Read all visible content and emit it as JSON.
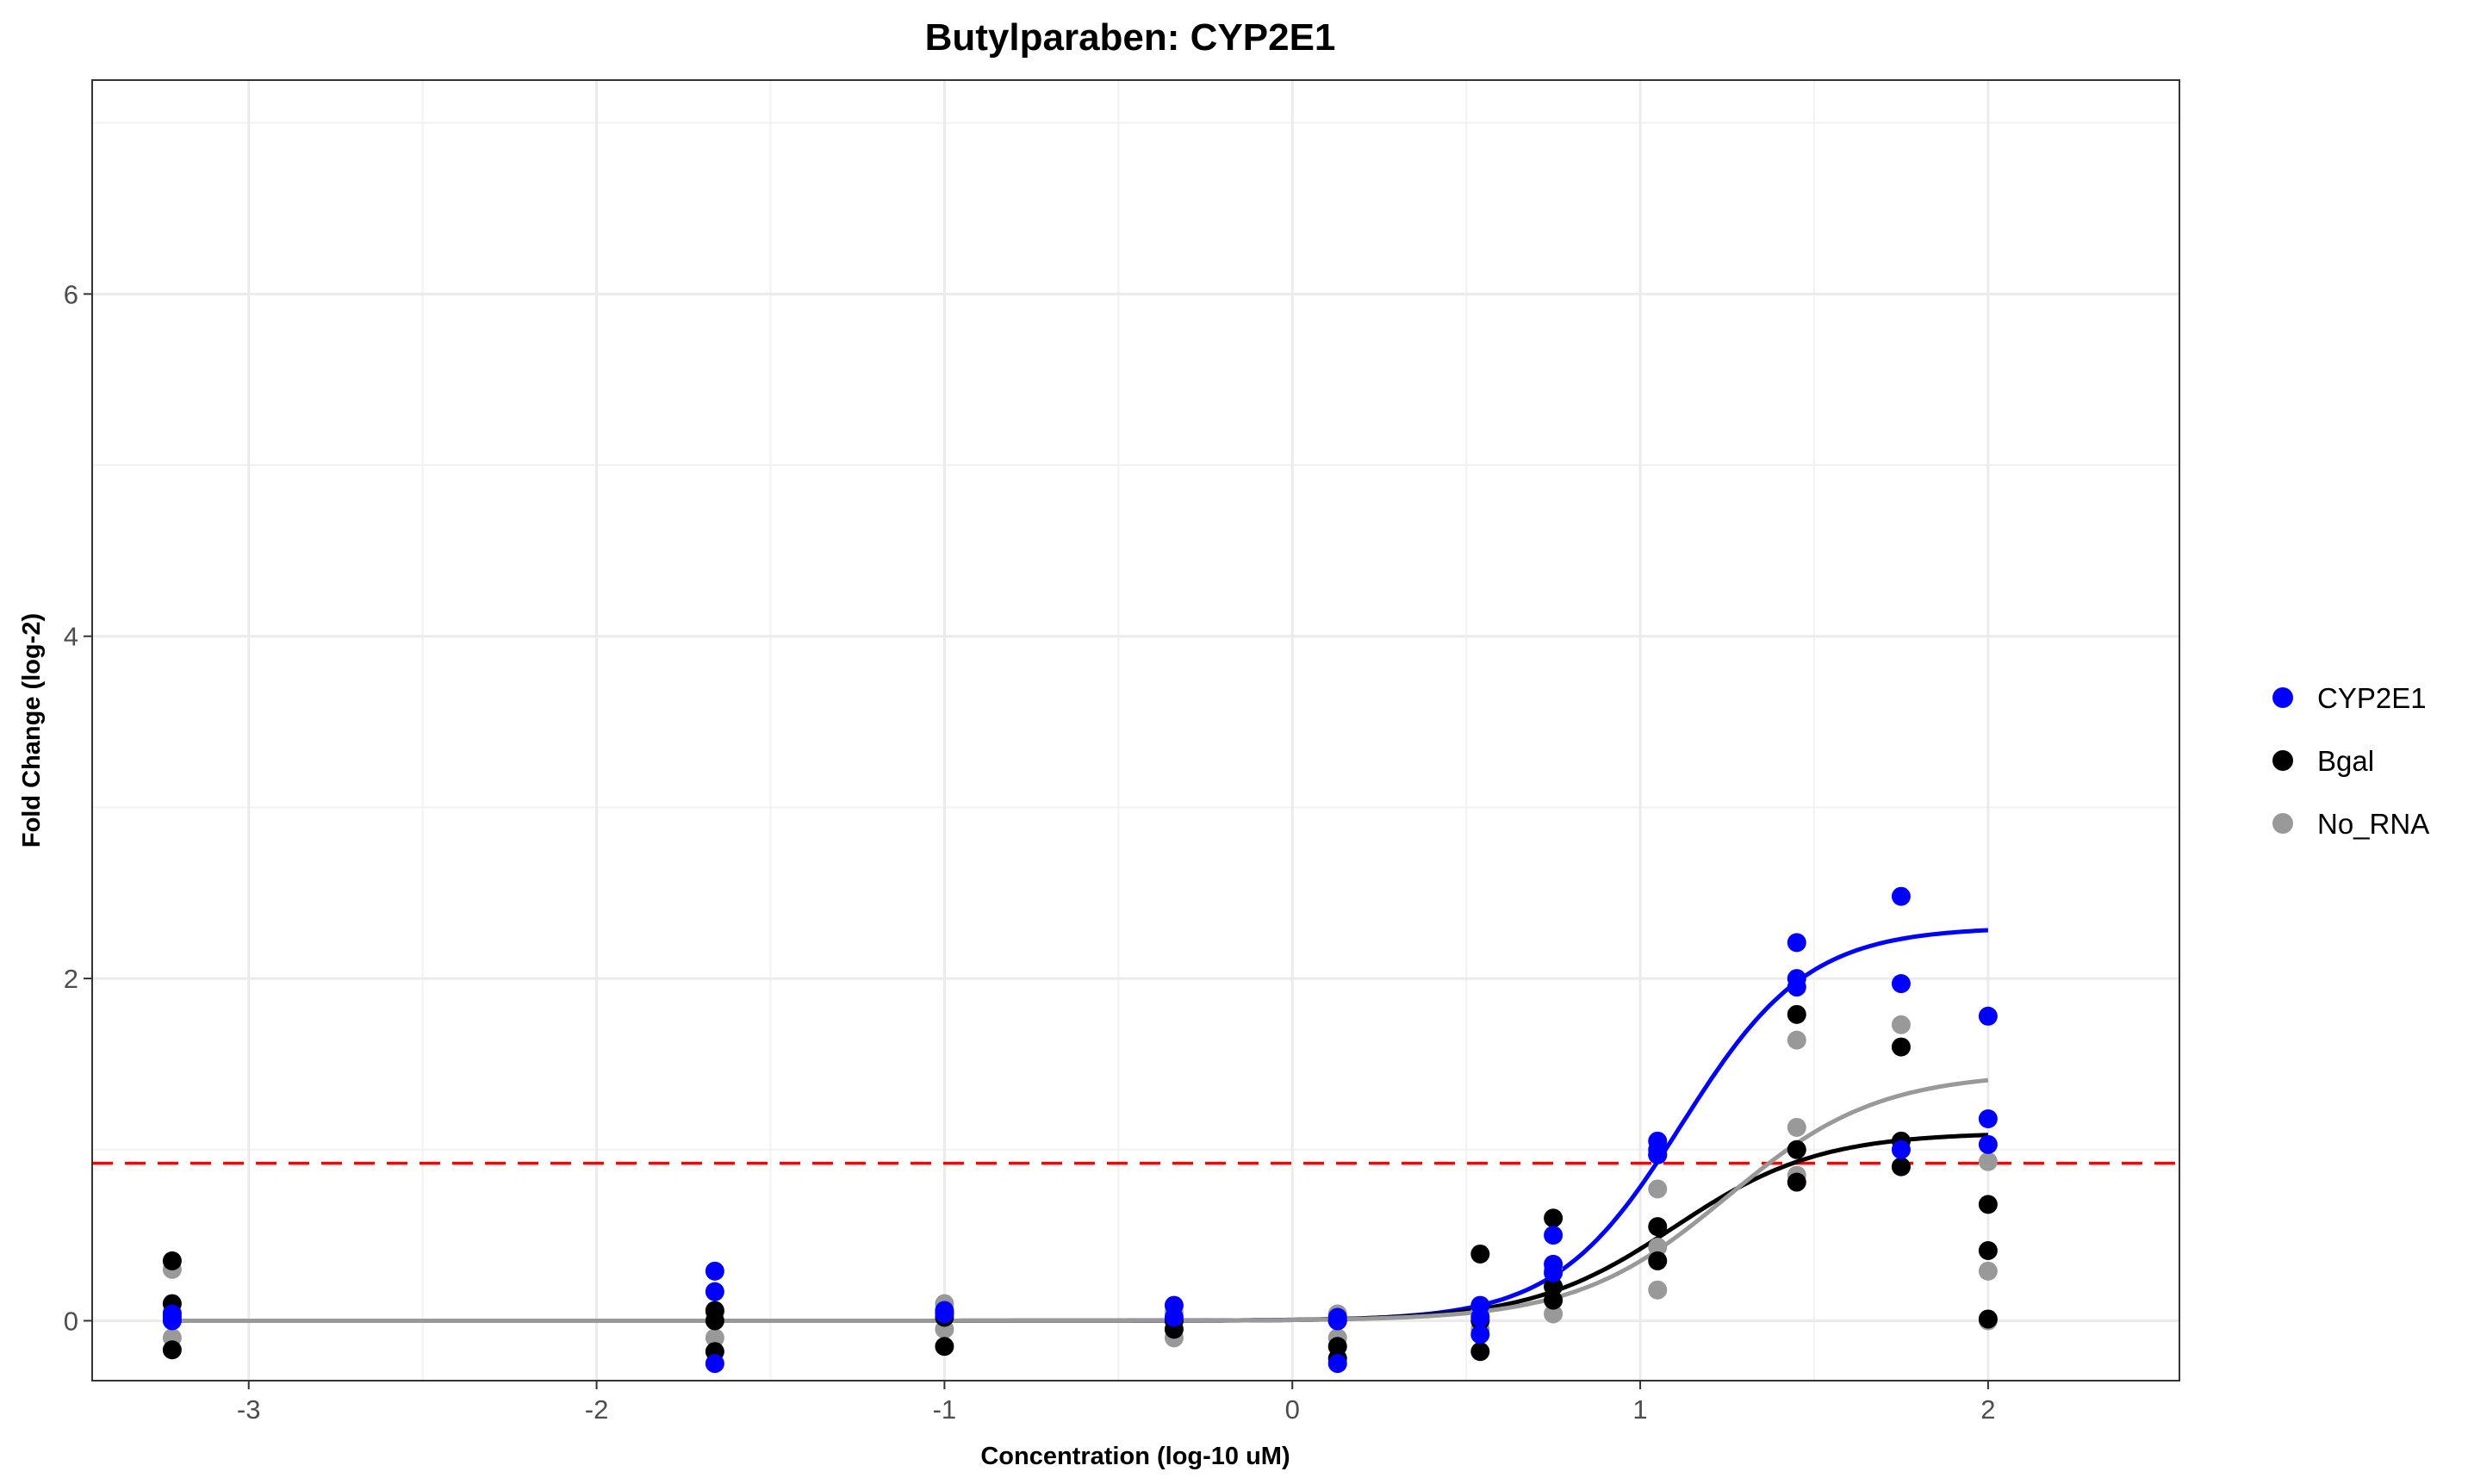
{
  "chart_data": {
    "type": "scatter",
    "title": "Butylparaben: CYP2E1",
    "xlabel": "Concentration (log-10 uM)",
    "ylabel": "Fold Change (log-2)",
    "xlim": [
      -3.45,
      2.55
    ],
    "ylim": [
      -0.35,
      7.25
    ],
    "x_ticks": [
      -3,
      -2,
      -1,
      0,
      1,
      2
    ],
    "y_ticks": [
      0,
      2,
      4,
      6
    ],
    "grid": true,
    "legend_position": "right",
    "threshold": {
      "y": 0.92,
      "color": "#ff0000",
      "style": "dashed"
    },
    "series": [
      {
        "name": "CYP2E1",
        "color": "#0000ff",
        "points": [
          [
            -3.22,
            0.0
          ],
          [
            -3.22,
            0.02
          ],
          [
            -3.22,
            0.04
          ],
          [
            -1.66,
            0.29
          ],
          [
            -1.66,
            0.17
          ],
          [
            -1.66,
            -0.25
          ],
          [
            -1.0,
            0.04
          ],
          [
            -1.0,
            0.06
          ],
          [
            -0.34,
            0.09
          ],
          [
            -0.34,
            0.02
          ],
          [
            0.13,
            0.0
          ],
          [
            0.13,
            -0.25
          ],
          [
            0.13,
            0.02
          ],
          [
            0.54,
            0.09
          ],
          [
            0.54,
            0.02
          ],
          [
            0.54,
            -0.08
          ],
          [
            0.75,
            0.5
          ],
          [
            0.75,
            0.33
          ],
          [
            0.75,
            0.28
          ],
          [
            1.05,
            1.05
          ],
          [
            1.05,
            0.97
          ],
          [
            1.05,
            1.0
          ],
          [
            1.45,
            2.21
          ],
          [
            1.45,
            2.0
          ],
          [
            1.45,
            1.95
          ],
          [
            1.75,
            2.48
          ],
          [
            1.75,
            1.97
          ],
          [
            1.75,
            1.0
          ],
          [
            2.0,
            1.78
          ],
          [
            2.0,
            1.18
          ],
          [
            2.0,
            1.03
          ]
        ],
        "curve": {
          "bottom": 0.0,
          "top": 2.3,
          "log_ec50": 1.12,
          "hill": 2.4
        }
      },
      {
        "name": "Bgal",
        "color": "#000000",
        "points": [
          [
            -3.22,
            0.35
          ],
          [
            -3.22,
            0.1
          ],
          [
            -3.22,
            -0.17
          ],
          [
            -1.66,
            -0.18
          ],
          [
            -1.66,
            0.0
          ],
          [
            -1.66,
            0.06
          ],
          [
            -1.0,
            -0.15
          ],
          [
            -1.0,
            0.02
          ],
          [
            -1.0,
            0.05
          ],
          [
            -0.34,
            0.0
          ],
          [
            -0.34,
            -0.05
          ],
          [
            0.13,
            -0.22
          ],
          [
            0.13,
            -0.15
          ],
          [
            0.13,
            0.0
          ],
          [
            0.54,
            0.39
          ],
          [
            0.54,
            -0.18
          ],
          [
            0.54,
            0.0
          ],
          [
            0.75,
            0.6
          ],
          [
            0.75,
            0.2
          ],
          [
            0.75,
            0.12
          ],
          [
            1.05,
            0.97
          ],
          [
            1.05,
            0.55
          ],
          [
            1.05,
            0.35
          ],
          [
            1.45,
            1.79
          ],
          [
            1.45,
            1.0
          ],
          [
            1.45,
            0.81
          ],
          [
            1.75,
            1.6
          ],
          [
            1.75,
            1.05
          ],
          [
            1.75,
            0.9
          ],
          [
            2.0,
            0.68
          ],
          [
            2.0,
            0.41
          ],
          [
            2.0,
            0.01
          ]
        ],
        "curve": {
          "bottom": 0.0,
          "top": 1.1,
          "log_ec50": 1.1,
          "hill": 2.1
        }
      },
      {
        "name": "No_RNA",
        "color": "#999999",
        "points": [
          [
            -3.22,
            0.3
          ],
          [
            -3.22,
            0.05
          ],
          [
            -3.22,
            -0.1
          ],
          [
            -1.66,
            0.05
          ],
          [
            -1.66,
            -0.1
          ],
          [
            -1.0,
            0.1
          ],
          [
            -1.0,
            -0.05
          ],
          [
            -0.34,
            0.05
          ],
          [
            -0.34,
            -0.1
          ],
          [
            0.13,
            0.04
          ],
          [
            0.13,
            -0.1
          ],
          [
            0.54,
            0.05
          ],
          [
            0.54,
            -0.05
          ],
          [
            0.75,
            0.3
          ],
          [
            0.75,
            0.2
          ],
          [
            0.75,
            0.04
          ],
          [
            1.05,
            0.77
          ],
          [
            1.05,
            0.43
          ],
          [
            1.05,
            0.18
          ],
          [
            1.45,
            1.64
          ],
          [
            1.45,
            1.13
          ],
          [
            1.45,
            0.85
          ],
          [
            1.75,
            1.73
          ],
          [
            1.75,
            1.0
          ],
          [
            1.75,
            0.9
          ],
          [
            2.0,
            0.93
          ],
          [
            2.0,
            0.29
          ],
          [
            2.0,
            0.0
          ]
        ],
        "curve": {
          "bottom": 0.0,
          "top": 1.45,
          "log_ec50": 1.25,
          "hill": 2.0
        }
      }
    ]
  }
}
